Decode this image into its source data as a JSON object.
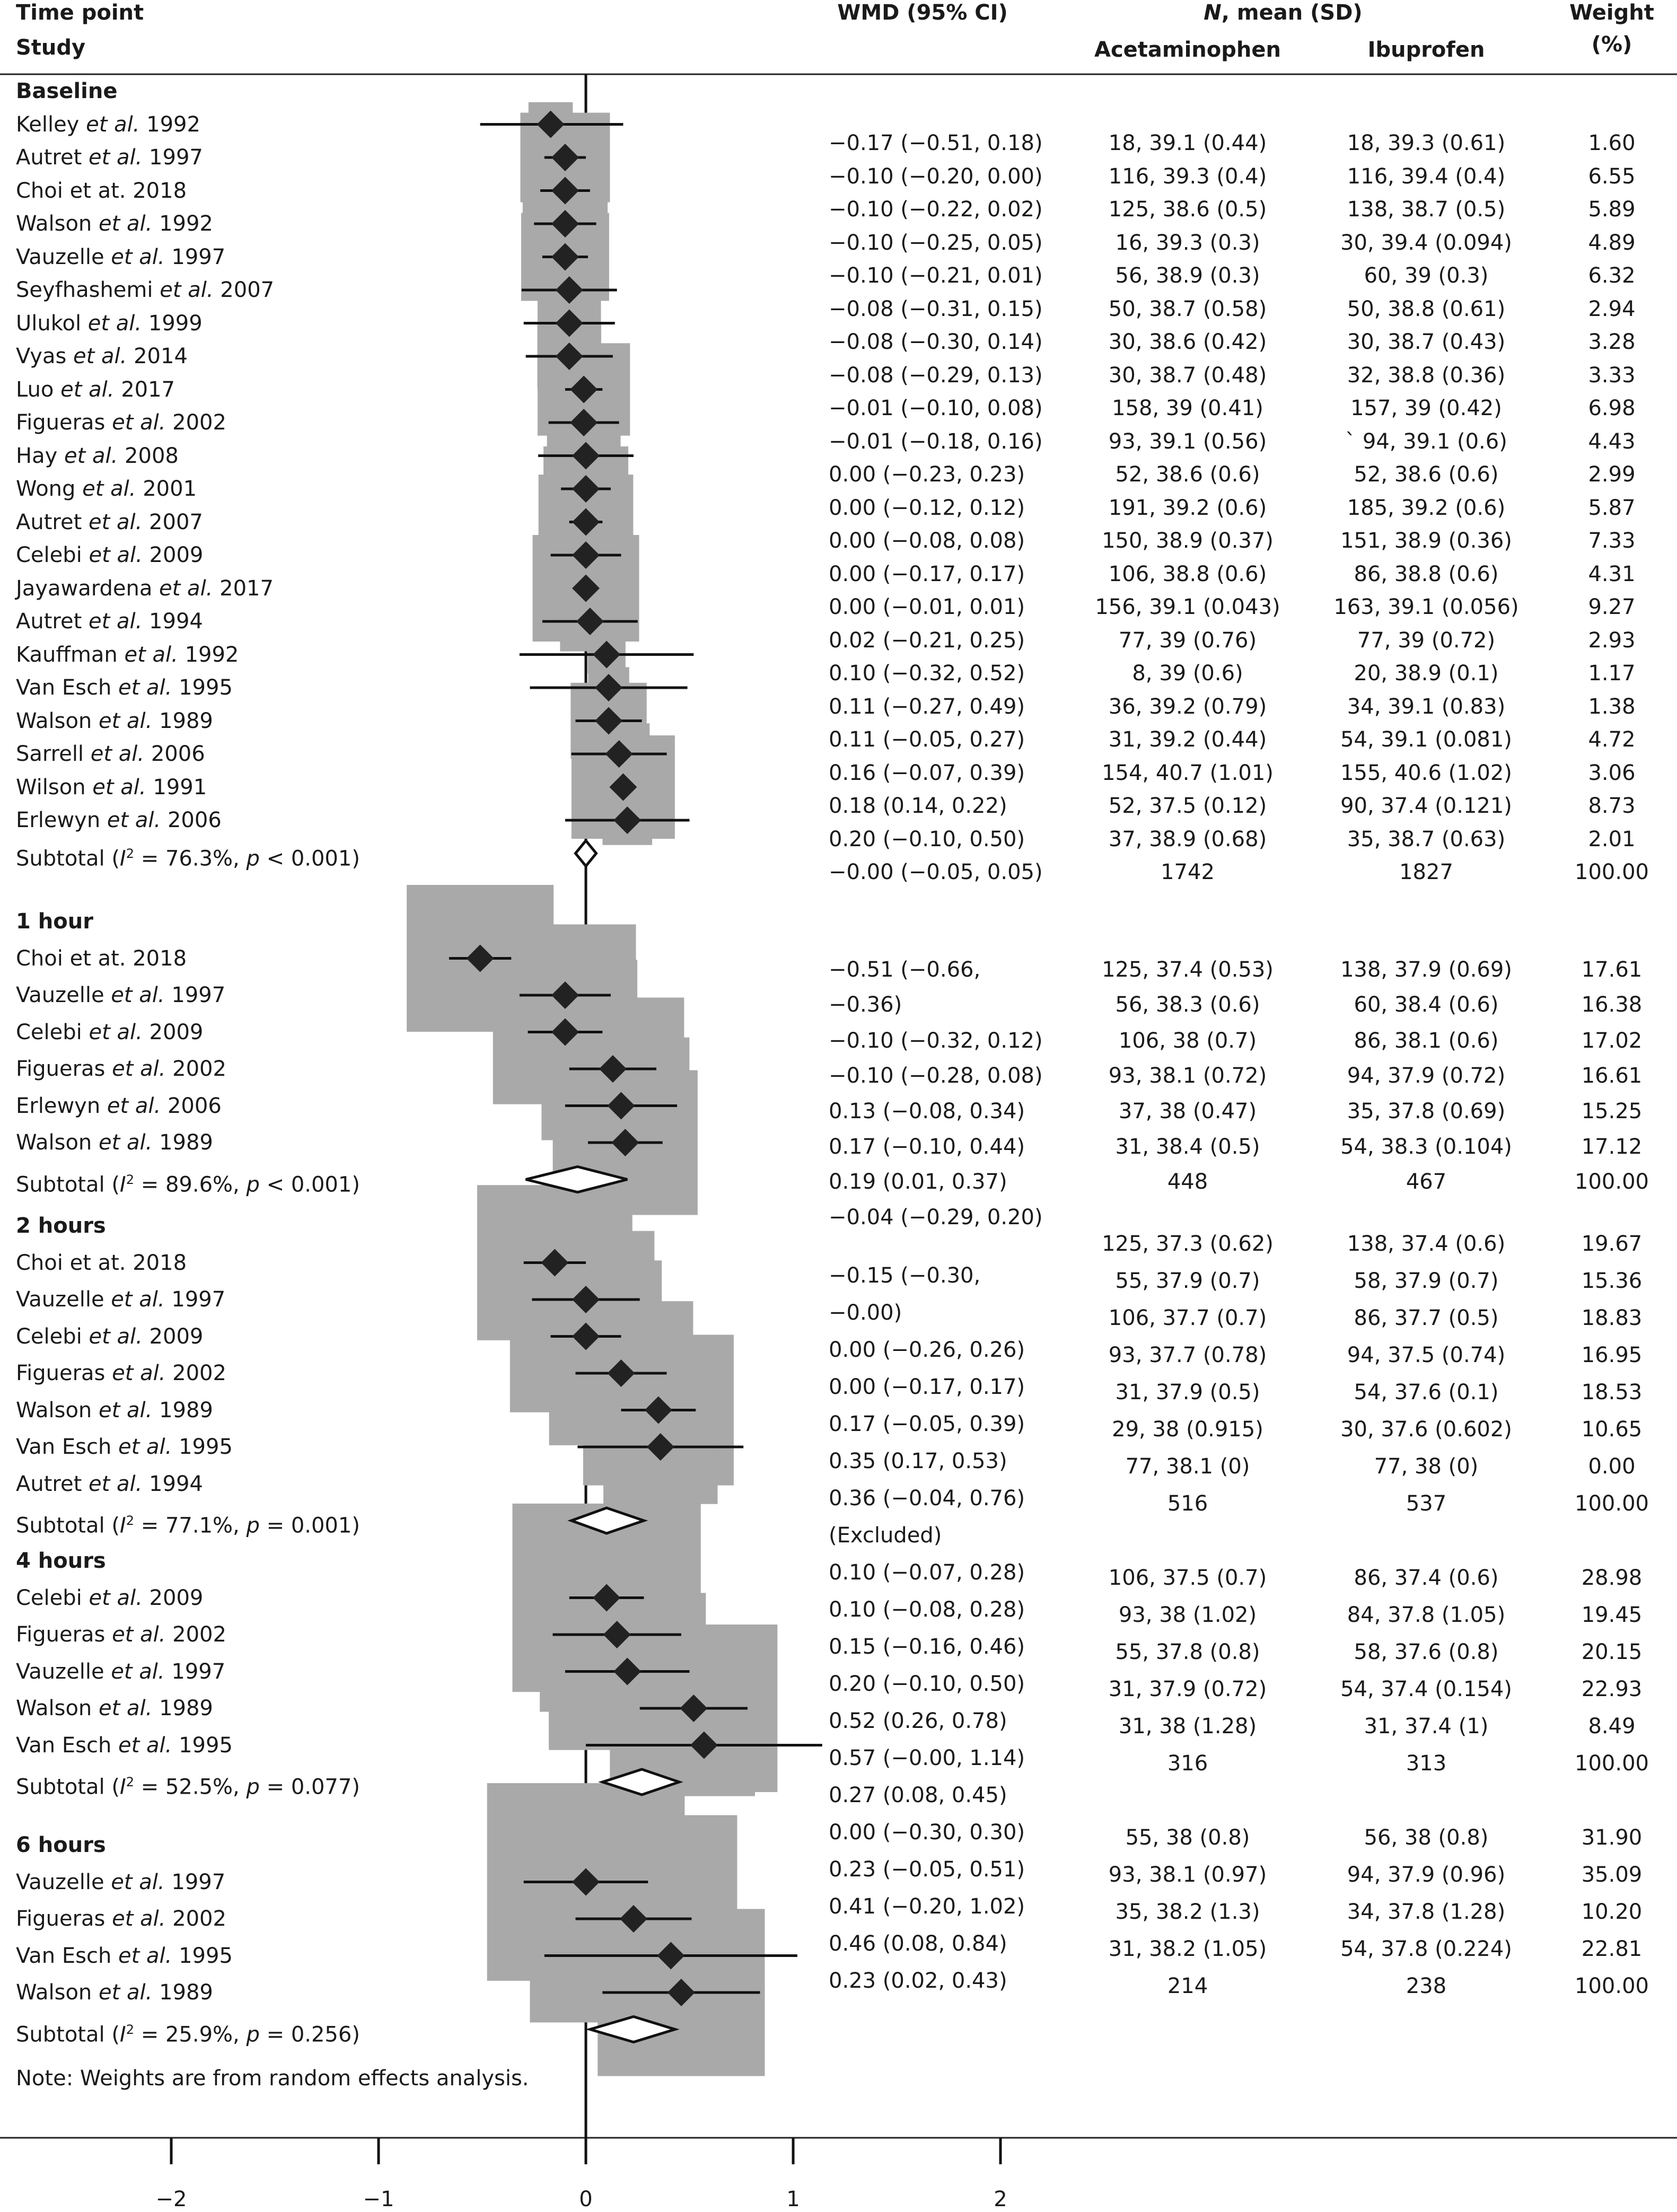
{
  "header": {
    "time_point": "Time point",
    "study": "Study",
    "wmd": "WMD (95% CI)",
    "n_mean_prefix": "N",
    "n_mean_suffix": ", mean (SD)",
    "acetaminophen": "Acetaminophen",
    "ibuprofen": "Ibuprofen",
    "weight": "Weight",
    "weight_unit": "(%)"
  },
  "note": "Note: Weights are from random effects analysis.",
  "chart_data": {
    "type": "forest",
    "xlim": [
      -2,
      2
    ],
    "x_ticks": [
      -2,
      -1,
      0,
      1,
      2
    ],
    "x_tick_labels": [
      "−2",
      "−1",
      "0",
      "1",
      "2"
    ],
    "reference_line": 0,
    "colors": {
      "marker": "#222222",
      "box": "#a9a9a9",
      "line": "#111111"
    },
    "subgroups": [
      {
        "label": "Baseline",
        "studies": [
          {
            "pre": "Kelley ",
            "etal": "et al.",
            "post": " 1992",
            "est": -0.17,
            "lo": -0.51,
            "hi": 0.18,
            "w": 1.6
          },
          {
            "pre": "Autret ",
            "etal": "et al.",
            "post": " 1997",
            "est": -0.1,
            "lo": -0.2,
            "hi": 0.0,
            "w": 6.55
          },
          {
            "pre": "Choi et at. 2018",
            "etal": "",
            "post": "",
            "est": -0.1,
            "lo": -0.22,
            "hi": 0.02,
            "w": 5.89
          },
          {
            "pre": "Walson ",
            "etal": "et al.",
            "post": " 1992",
            "est": -0.1,
            "lo": -0.25,
            "hi": 0.05,
            "w": 4.89
          },
          {
            "pre": "Vauzelle ",
            "etal": "et al.",
            "post": " 1997",
            "est": -0.1,
            "lo": -0.21,
            "hi": 0.01,
            "w": 6.32
          },
          {
            "pre": "Seyfhashemi ",
            "etal": "et al.",
            "post": " 2007",
            "est": -0.08,
            "lo": -0.31,
            "hi": 0.15,
            "w": 2.94
          },
          {
            "pre": "Ulukol ",
            "etal": "et al.",
            "post": " 1999",
            "est": -0.08,
            "lo": -0.3,
            "hi": 0.14,
            "w": 3.28
          },
          {
            "pre": "Vyas ",
            "etal": "et al.",
            "post": " 2014",
            "est": -0.08,
            "lo": -0.29,
            "hi": 0.13,
            "w": 3.33
          },
          {
            "pre": "Luo ",
            "etal": "et al.",
            "post": " 2017",
            "est": -0.01,
            "lo": -0.1,
            "hi": 0.08,
            "w": 6.98
          },
          {
            "pre": "Figueras ",
            "etal": "et al.",
            "post": " 2002",
            "est": -0.01,
            "lo": -0.18,
            "hi": 0.16,
            "w": 4.43
          },
          {
            "pre": "Hay ",
            "etal": "et al.",
            "post": " 2008",
            "est": 0.0,
            "lo": -0.23,
            "hi": 0.23,
            "w": 2.99
          },
          {
            "pre": "Wong ",
            "etal": "et al.",
            "post": " 2001",
            "est": 0.0,
            "lo": -0.12,
            "hi": 0.12,
            "w": 5.87
          },
          {
            "pre": "Autret ",
            "etal": "et al.",
            "post": " 2007",
            "est": 0.0,
            "lo": -0.08,
            "hi": 0.08,
            "w": 7.33
          },
          {
            "pre": "Celebi ",
            "etal": "et al.",
            "post": " 2009",
            "est": 0.0,
            "lo": -0.17,
            "hi": 0.17,
            "w": 4.31
          },
          {
            "pre": "Jayawardena ",
            "etal": "et al.",
            "post": " 2017",
            "est": 0.0,
            "lo": -0.01,
            "hi": 0.01,
            "w": 9.27
          },
          {
            "pre": "Autret ",
            "etal": "et al.",
            "post": " 1994",
            "est": 0.02,
            "lo": -0.21,
            "hi": 0.25,
            "w": 2.93
          },
          {
            "pre": "Kauffman ",
            "etal": "et al.",
            "post": " 1992",
            "est": 0.1,
            "lo": -0.32,
            "hi": 0.52,
            "w": 1.17
          },
          {
            "pre": "Van Esch ",
            "etal": "et al.",
            "post": " 1995",
            "est": 0.11,
            "lo": -0.27,
            "hi": 0.49,
            "w": 1.38
          },
          {
            "pre": "Walson ",
            "etal": "et al.",
            "post": " 1989",
            "est": 0.11,
            "lo": -0.05,
            "hi": 0.27,
            "w": 4.72
          },
          {
            "pre": "Sarrell ",
            "etal": "et al.",
            "post": " 2006",
            "est": 0.16,
            "lo": -0.07,
            "hi": 0.39,
            "w": 3.06
          },
          {
            "pre": "Wilson ",
            "etal": "et al.",
            "post": " 1991",
            "est": 0.18,
            "lo": 0.14,
            "hi": 0.22,
            "w": 8.73
          },
          {
            "pre": "Erlewyn ",
            "etal": "et al.",
            "post": " 2006",
            "est": 0.2,
            "lo": -0.1,
            "hi": 0.5,
            "w": 2.01
          }
        ],
        "subtotal": {
          "i2": "76.3%",
          "p_op": " < ",
          "p": "0.001",
          "est": 0.0,
          "lo": -0.05,
          "hi": 0.05
        }
      },
      {
        "label": "1 hour",
        "studies": [
          {
            "pre": "Choi et at. 2018",
            "etal": "",
            "post": "",
            "est": -0.51,
            "lo": -0.66,
            "hi": -0.36,
            "w": 17.61
          },
          {
            "pre": "Vauzelle ",
            "etal": "et al.",
            "post": " 1997",
            "est": -0.1,
            "lo": -0.32,
            "hi": 0.12,
            "w": 16.38
          },
          {
            "pre": "Celebi ",
            "etal": "et al.",
            "post": " 2009",
            "est": -0.1,
            "lo": -0.28,
            "hi": 0.08,
            "w": 17.02
          },
          {
            "pre": "Figueras ",
            "etal": "et al.",
            "post": " 2002",
            "est": 0.13,
            "lo": -0.08,
            "hi": 0.34,
            "w": 16.61
          },
          {
            "pre": "Erlewyn ",
            "etal": "et al.",
            "post": " 2006",
            "est": 0.17,
            "lo": -0.1,
            "hi": 0.44,
            "w": 15.25
          },
          {
            "pre": "Walson ",
            "etal": "et al.",
            "post": " 1989",
            "est": 0.19,
            "lo": 0.01,
            "hi": 0.37,
            "w": 17.12
          }
        ],
        "subtotal": {
          "i2": "89.6%",
          "p_op": " < ",
          "p": "0.001",
          "est": -0.04,
          "lo": -0.29,
          "hi": 0.2
        }
      },
      {
        "label": "2 hours",
        "studies": [
          {
            "pre": "Choi et at. 2018",
            "etal": "",
            "post": "",
            "est": -0.15,
            "lo": -0.3,
            "hi": -0.0,
            "w": 19.67
          },
          {
            "pre": "Vauzelle ",
            "etal": "et al.",
            "post": " 1997",
            "est": 0.0,
            "lo": -0.26,
            "hi": 0.26,
            "w": 15.36
          },
          {
            "pre": "Celebi ",
            "etal": "et al.",
            "post": " 2009",
            "est": 0.0,
            "lo": -0.17,
            "hi": 0.17,
            "w": 18.83
          },
          {
            "pre": "Figueras ",
            "etal": "et al.",
            "post": " 2002",
            "est": 0.17,
            "lo": -0.05,
            "hi": 0.39,
            "w": 16.95
          },
          {
            "pre": "Walson ",
            "etal": "et al.",
            "post": " 1989",
            "est": 0.35,
            "lo": 0.17,
            "hi": 0.53,
            "w": 18.53
          },
          {
            "pre": "Van Esch ",
            "etal": "et al.",
            "post": " 1995",
            "est": 0.36,
            "lo": -0.04,
            "hi": 0.76,
            "w": 10.65
          },
          {
            "pre": "Autret ",
            "etal": "et al.",
            "post": " 1994",
            "excluded": true
          }
        ],
        "subtotal": {
          "i2": "77.1%",
          "p_op": " = ",
          "p": "0.001",
          "est": 0.1,
          "lo": -0.07,
          "hi": 0.28
        }
      },
      {
        "label": "4 hours",
        "studies": [
          {
            "pre": "Celebi ",
            "etal": "et al.",
            "post": " 2009",
            "est": 0.1,
            "lo": -0.08,
            "hi": 0.28,
            "w": 28.98
          },
          {
            "pre": "Figueras ",
            "etal": "et al.",
            "post": " 2002",
            "est": 0.15,
            "lo": -0.16,
            "hi": 0.46,
            "w": 19.45
          },
          {
            "pre": "Vauzelle ",
            "etal": "et al.",
            "post": " 1997",
            "est": 0.2,
            "lo": -0.1,
            "hi": 0.5,
            "w": 20.15
          },
          {
            "pre": "Walson ",
            "etal": "et al.",
            "post": " 1989",
            "est": 0.52,
            "lo": 0.26,
            "hi": 0.78,
            "w": 22.93
          },
          {
            "pre": "Van Esch ",
            "etal": "et al.",
            "post": " 1995",
            "est": 0.57,
            "lo": -0.0,
            "hi": 1.14,
            "w": 8.49
          }
        ],
        "subtotal": {
          "i2": "52.5%",
          "p_op": " = ",
          "p": "0.077",
          "est": 0.27,
          "lo": 0.08,
          "hi": 0.45
        }
      },
      {
        "label": "6 hours",
        "studies": [
          {
            "pre": "Vauzelle ",
            "etal": "et al.",
            "post": " 1997",
            "est": 0.0,
            "lo": -0.3,
            "hi": 0.3,
            "w": 31.9
          },
          {
            "pre": "Figueras ",
            "etal": "et al.",
            "post": " 2002",
            "est": 0.23,
            "lo": -0.05,
            "hi": 0.51,
            "w": 35.09
          },
          {
            "pre": "Van Esch ",
            "etal": "et al.",
            "post": " 1995",
            "est": 0.41,
            "lo": -0.2,
            "hi": 1.02,
            "w": 10.2
          },
          {
            "pre": "Walson ",
            "etal": "et al.",
            "post": " 1989",
            "est": 0.46,
            "lo": 0.08,
            "hi": 0.84,
            "w": 22.81
          }
        ],
        "subtotal": {
          "i2": "25.9%",
          "p_op": " = ",
          "p": "0.256",
          "est": 0.23,
          "lo": 0.02,
          "hi": 0.43
        }
      }
    ],
    "wmd_column": [
      "−0.17 (−0.51, 0.18)",
      "−0.10 (−0.20, 0.00)",
      "−0.10 (−0.22, 0.02)",
      "−0.10 (−0.25, 0.05)",
      "−0.10 (−0.21, 0.01)",
      "−0.08 (−0.31, 0.15)",
      "−0.08 (−0.30, 0.14)",
      "−0.08 (−0.29, 0.13)",
      "−0.01 (−0.10, 0.08)",
      "−0.01 (−0.18, 0.16)",
      "0.00 (−0.23, 0.23)",
      "0.00 (−0.12, 0.12)",
      "0.00 (−0.08, 0.08)",
      "0.00 (−0.17, 0.17)",
      "0.00 (−0.01, 0.01)",
      "0.02 (−0.21, 0.25)",
      "0.10 (−0.32, 0.52)",
      "0.11 (−0.27, 0.49)",
      "0.11 (−0.05, 0.27)",
      "0.16 (−0.07, 0.39)",
      "0.18 (0.14, 0.22)",
      "0.20 (−0.10, 0.50)",
      "−0.00 (−0.05, 0.05)",
      "−0.51 (−0.66,",
      "−0.36)",
      "−0.10 (−0.32, 0.12)",
      "−0.10 (−0.28, 0.08)",
      "0.13 (−0.08, 0.34)",
      "0.17 (−0.10, 0.44)",
      "0.19 (0.01, 0.37)",
      "−0.04 (−0.29, 0.20)",
      "−0.15 (−0.30,",
      "−0.00)",
      "0.00 (−0.26, 0.26)",
      "0.00 (−0.17, 0.17)",
      "0.17 (−0.05, 0.39)",
      "0.35 (0.17, 0.53)",
      "0.36 (−0.04, 0.76)",
      "(Excluded)",
      "0.10 (−0.07, 0.28)",
      "0.10 (−0.08, 0.28)",
      "0.15 (−0.16, 0.46)",
      "0.20 (−0.10, 0.50)",
      "0.52 (0.26, 0.78)",
      "0.57 (−0.00, 1.14)",
      "0.27 (0.08, 0.45)",
      "0.00 (−0.30, 0.30)",
      "0.23 (−0.05, 0.51)",
      "0.41 (−0.20, 1.02)",
      "0.46 (0.08, 0.84)",
      "0.23 (0.02, 0.43)"
    ],
    "n_column": [
      [
        "18, 39.1 (0.44)",
        "18, 39.3 (0.61)",
        "1.60"
      ],
      [
        "116, 39.3 (0.4)",
        "116, 39.4 (0.4)",
        "6.55"
      ],
      [
        "125, 38.6 (0.5)",
        "138, 38.7 (0.5)",
        "5.89"
      ],
      [
        "16, 39.3 (0.3)",
        "30, 39.4 (0.094)",
        "4.89"
      ],
      [
        "56, 38.9 (0.3)",
        "60, 39 (0.3)",
        "6.32"
      ],
      [
        "50, 38.7 (0.58)",
        "50, 38.8 (0.61)",
        "2.94"
      ],
      [
        "30, 38.6 (0.42)",
        "30, 38.7 (0.43)",
        "3.28"
      ],
      [
        "30, 38.7 (0.48)",
        "32, 38.8 (0.36)",
        "3.33"
      ],
      [
        "158, 39 (0.41)",
        "157, 39 (0.42)",
        "6.98"
      ],
      [
        "93, 39.1 (0.56)",
        "` 94, 39.1 (0.6)",
        "4.43"
      ],
      [
        "52, 38.6 (0.6)",
        "52, 38.6 (0.6)",
        "2.99"
      ],
      [
        "191, 39.2 (0.6)",
        "185, 39.2 (0.6)",
        "5.87"
      ],
      [
        "150, 38.9 (0.37)",
        "151, 38.9 (0.36)",
        "7.33"
      ],
      [
        "106, 38.8 (0.6)",
        "86, 38.8 (0.6)",
        "4.31"
      ],
      [
        "156, 39.1 (0.043)",
        "163, 39.1 (0.056)",
        "9.27"
      ],
      [
        "77, 39 (0.76)",
        "77, 39 (0.72)",
        "2.93"
      ],
      [
        "8, 39 (0.6)",
        "20, 38.9 (0.1)",
        "1.17"
      ],
      [
        "36, 39.2 (0.79)",
        "34, 39.1 (0.83)",
        "1.38"
      ],
      [
        "31, 39.2 (0.44)",
        "54, 39.1 (0.081)",
        "4.72"
      ],
      [
        "154, 40.7 (1.01)",
        "155, 40.6 (1.02)",
        "3.06"
      ],
      [
        "52, 37.5 (0.12)",
        "90, 37.4 (0.121)",
        "8.73"
      ],
      [
        "37, 38.9 (0.68)",
        "35, 38.7 (0.63)",
        "2.01"
      ],
      [
        "1742",
        "1827",
        "100.00"
      ],
      [
        "125, 37.4 (0.53)",
        "138, 37.9 (0.69)",
        "17.61"
      ],
      [
        "56, 38.3 (0.6)",
        "60, 38.4 (0.6)",
        "16.38"
      ],
      [
        "106, 38 (0.7)",
        "86, 38.1 (0.6)",
        "17.02"
      ],
      [
        "93, 38.1 (0.72)",
        "94, 37.9 (0.72)",
        "16.61"
      ],
      [
        "37, 38 (0.47)",
        "35, 37.8 (0.69)",
        "15.25"
      ],
      [
        "31, 38.4 (0.5)",
        "54, 38.3 (0.104)",
        "17.12"
      ],
      [
        "448",
        "467",
        "100.00"
      ],
      [
        "125, 37.3 (0.62)",
        "138, 37.4 (0.6)",
        "19.67"
      ],
      [
        "55, 37.9 (0.7)",
        "58, 37.9 (0.7)",
        "15.36"
      ],
      [
        "106, 37.7 (0.7)",
        "86, 37.7 (0.5)",
        "18.83"
      ],
      [
        "93, 37.7 (0.78)",
        "94, 37.5 (0.74)",
        "16.95"
      ],
      [
        "31, 37.9 (0.5)",
        "54, 37.6 (0.1)",
        "18.53"
      ],
      [
        "29, 38 (0.915)",
        "30, 37.6 (0.602)",
        "10.65"
      ],
      [
        "77, 38.1 (0)",
        "77, 38 (0)",
        "0.00"
      ],
      [
        "516",
        "537",
        "100.00"
      ],
      [
        "106, 37.5 (0.7)",
        "86, 37.4 (0.6)",
        "28.98"
      ],
      [
        "93, 38 (1.02)",
        "84, 37.8 (1.05)",
        "19.45"
      ],
      [
        "55, 37.8 (0.8)",
        "58, 37.6 (0.8)",
        "20.15"
      ],
      [
        "31, 37.9 (0.72)",
        "54, 37.4 (0.154)",
        "22.93"
      ],
      [
        "31, 38 (1.28)",
        "31, 37.4 (1)",
        "8.49"
      ],
      [
        "316",
        "313",
        "100.00"
      ],
      [
        "55, 38 (0.8)",
        "56, 38 (0.8)",
        "31.90"
      ],
      [
        "93, 38.1 (0.97)",
        "94, 37.9 (0.96)",
        "35.09"
      ],
      [
        "35, 38.2 (1.3)",
        "34, 37.8 (1.28)",
        "10.20"
      ],
      [
        "31, 38.2 (1.05)",
        "54, 37.8 (0.224)",
        "22.81"
      ],
      [
        "214",
        "238",
        "100.00"
      ]
    ]
  }
}
